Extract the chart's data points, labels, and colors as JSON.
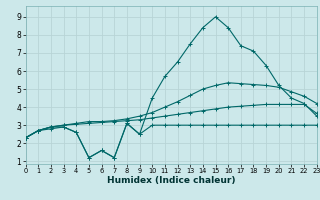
{
  "xlabel": "Humidex (Indice chaleur)",
  "xlim": [
    0,
    23
  ],
  "ylim": [
    0.85,
    9.6
  ],
  "xticks": [
    0,
    1,
    2,
    3,
    4,
    5,
    6,
    7,
    8,
    9,
    10,
    11,
    12,
    13,
    14,
    15,
    16,
    17,
    18,
    19,
    20,
    21,
    22,
    23
  ],
  "yticks": [
    1,
    2,
    3,
    4,
    5,
    6,
    7,
    8,
    9
  ],
  "bg_color": "#cce8ea",
  "grid_color": "#b8d4d6",
  "line_color": "#006868",
  "line1_y": [
    2.3,
    2.7,
    2.8,
    2.9,
    2.6,
    1.2,
    1.6,
    1.2,
    3.1,
    2.5,
    3.0,
    3.0,
    3.0,
    3.0,
    3.0,
    3.0,
    3.0,
    3.0,
    3.0,
    3.0,
    3.0,
    3.0,
    3.0,
    3.0
  ],
  "line2_y": [
    2.3,
    2.7,
    2.9,
    3.0,
    3.05,
    3.1,
    3.15,
    3.2,
    3.25,
    3.3,
    3.4,
    3.5,
    3.6,
    3.7,
    3.8,
    3.9,
    4.0,
    4.05,
    4.1,
    4.15,
    4.15,
    4.15,
    4.15,
    3.65
  ],
  "line3_y": [
    2.3,
    2.7,
    2.9,
    3.0,
    3.1,
    3.2,
    3.2,
    3.25,
    3.35,
    3.5,
    3.7,
    4.0,
    4.3,
    4.65,
    5.0,
    5.2,
    5.35,
    5.3,
    5.25,
    5.2,
    5.1,
    4.85,
    4.6,
    4.2
  ],
  "line4_y": [
    2.3,
    2.7,
    2.9,
    2.9,
    2.6,
    1.2,
    1.6,
    1.2,
    3.1,
    2.5,
    4.5,
    5.7,
    6.5,
    7.5,
    8.4,
    9.0,
    8.4,
    7.4,
    7.1,
    6.3,
    5.2,
    4.5,
    4.2,
    3.5
  ]
}
